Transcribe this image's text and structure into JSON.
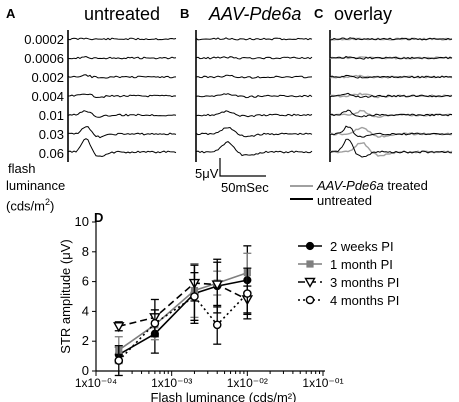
{
  "panels": {
    "a": {
      "letter": "A",
      "title": "untreated"
    },
    "b": {
      "letter": "B",
      "title": "AAV-Pde6a"
    },
    "c": {
      "letter": "C",
      "title": "overlay"
    },
    "d": {
      "letter": "D"
    }
  },
  "luminance_levels": [
    "0.0002",
    "0.0006",
    "0.002",
    "0.004",
    "0.01",
    "0.03",
    "0.06"
  ],
  "flash_label": {
    "line1": "flash",
    "line2": "luminance",
    "line3": "(cds/m",
    "sup": "2",
    "line3_end": ")"
  },
  "scale_bar": {
    "voltage": "5μV",
    "time": "50mSec"
  },
  "overlay_legend": {
    "treated_italic": "AAV-Pde6a",
    "treated_rest": " treated",
    "untreated": "untreated",
    "treated_color": "#a0a0a0",
    "untreated_color": "#000000"
  },
  "chart_data": {
    "type": "line",
    "xscale": "log",
    "xlabel": "Flash luminance (cds/m²)",
    "ylabel": "STR amplitude (μV)",
    "xlim": [
      0.0001,
      0.1
    ],
    "ylim": [
      0,
      10
    ],
    "x_ticks": [
      "1x10⁻⁰⁴",
      "1x10⁻⁰³",
      "1x10⁻⁰²",
      "1x10⁻⁰¹"
    ],
    "y_ticks": [
      "0",
      "2",
      "4",
      "6",
      "8",
      "10"
    ],
    "series": [
      {
        "name": "2 weeks PI",
        "color": "#000000",
        "marker": "filled-circle",
        "dash": "solid",
        "x": [
          0.0002,
          0.0006,
          0.002,
          0.004,
          0.01
        ],
        "y": [
          1.1,
          2.5,
          5.2,
          5.7,
          6.1
        ],
        "err": [
          0.5,
          1.3,
          2.0,
          1.8,
          2.3
        ]
      },
      {
        "name": "1 month PI",
        "color": "#7f7f7f",
        "marker": "filled-square",
        "dash": "solid",
        "x": [
          0.0002,
          0.0006,
          0.002,
          0.004,
          0.01
        ],
        "y": [
          1.4,
          3.1,
          5.4,
          5.9,
          6.6
        ],
        "err": [
          0.9,
          1.0,
          1.8,
          0.8,
          1.3
        ]
      },
      {
        "name": "3 months PI",
        "color": "#000000",
        "marker": "open-triangle-down",
        "dash": "dashed",
        "x": [
          0.0002,
          0.0006,
          0.002,
          0.004,
          0.01
        ],
        "y": [
          3.0,
          3.6,
          5.9,
          5.8,
          4.8
        ],
        "err": [
          0.3,
          1.2,
          1.2,
          1.5,
          0.9
        ]
      },
      {
        "name": "4 months PI",
        "color": "#000000",
        "marker": "open-circle",
        "dash": "dotted",
        "x": [
          0.0002,
          0.0006,
          0.002,
          0.004,
          0.01
        ],
        "y": [
          0.7,
          3.2,
          5.0,
          3.1,
          5.2
        ],
        "err": [
          1.0,
          0.9,
          1.6,
          1.3,
          1.7
        ]
      }
    ],
    "legend_position": "top-right"
  }
}
